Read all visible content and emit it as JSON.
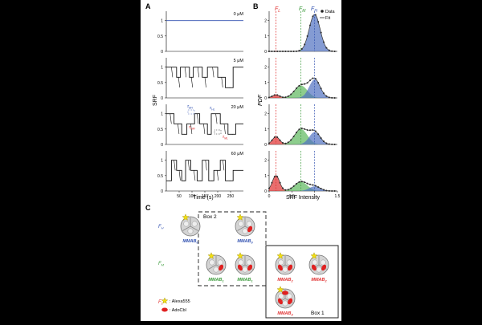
{
  "panel_labels": {
    "A": "A",
    "B": "B",
    "C": "C"
  },
  "panel_a": {
    "ylabel": "SRF",
    "xlabel": "Time (s)",
    "x_ticks": [
      "50",
      "100",
      "150",
      "200",
      "250"
    ],
    "y_ticks": [
      "0",
      "0.5",
      "1"
    ],
    "concentrations": [
      "0 μM",
      "5 μM",
      "20 μM",
      "60 μM"
    ],
    "annotations": {
      "t_bh": "τ",
      "t_bh_sub": "BH",
      "t_hl": "τ",
      "t_hl_sub": "HL",
      "t_hm": "τ",
      "t_hm_sub": "HM",
      "t_ml": "τ",
      "t_ml_sub": "ML"
    }
  },
  "panel_b": {
    "ylabel": "PDF",
    "xlabel": "SRF Intensity",
    "x_ticks": [
      "0",
      "0.5",
      "1",
      "1.5"
    ],
    "y_ticks": [
      "0",
      "1",
      "2"
    ],
    "state_labels": [
      {
        "main": "F",
        "sub": "L",
        "color": "#e03030"
      },
      {
        "main": "F",
        "sub": "M",
        "color": "#3a9a3a"
      },
      {
        "main": "F",
        "sub": "H",
        "color": "#3050b0"
      }
    ],
    "legend": {
      "data": "Data",
      "fit": "Fit"
    }
  },
  "panel_c": {
    "row_labels": [
      {
        "main": "F",
        "sub": "H",
        "color": "#3050b0"
      },
      {
        "main": "F",
        "sub": "M",
        "color": "#3a9a3a"
      },
      {
        "main": "F",
        "sub": "L",
        "color": "#e03030"
      }
    ],
    "box2_label": "Box 2",
    "box1_label": "Box 1",
    "legend_star": ": Alexa555",
    "legend_ellipse": ": AdoCbl",
    "proteins": [
      {
        "name": "MMAB",
        "sub": "0",
        "color": "#3050b0"
      },
      {
        "name": "MMAB",
        "sub": "0",
        "color": "#3050b0"
      },
      {
        "name": "MMAB",
        "sub": "1",
        "color": "#3a9a3a"
      },
      {
        "name": "MMAB",
        "sub": "1",
        "color": "#3a9a3a"
      },
      {
        "name": "MMAB",
        "sub": "2",
        "color": "#e03030"
      },
      {
        "name": "MMAB",
        "sub": "2",
        "color": "#e03030"
      },
      {
        "name": "MMAB",
        "sub": "3",
        "color": "#e03030"
      }
    ]
  },
  "chart_data": [
    {
      "type": "line",
      "title": "",
      "xlabel": "Time (s)",
      "ylabel": "SRF",
      "xlim": [
        0,
        300
      ],
      "ylim": [
        0,
        1.2
      ],
      "series_note_levels": [
        1.0,
        0.67,
        0.33
      ],
      "series": [
        {
          "name": "0 μM",
          "levels": [
            [
              0,
              300,
              1.0
            ]
          ]
        },
        {
          "name": "5 μM",
          "levels": [
            [
              0,
              40,
              1.0
            ],
            [
              40,
              55,
              0.67
            ],
            [
              55,
              90,
              1.0
            ],
            [
              90,
              105,
              0.67
            ],
            [
              105,
              140,
              1.0
            ],
            [
              140,
              160,
              0.67
            ],
            [
              160,
              200,
              1.0
            ],
            [
              200,
              230,
              0.67
            ],
            [
              230,
              260,
              0.33
            ],
            [
              260,
              300,
              1.0
            ]
          ]
        },
        {
          "name": "20 μM",
          "levels": [
            [
              0,
              30,
              1.0
            ],
            [
              30,
              60,
              0.67
            ],
            [
              60,
              80,
              0.33
            ],
            [
              80,
              110,
              0.67
            ],
            [
              110,
              130,
              1.0
            ],
            [
              130,
              160,
              0.67
            ],
            [
              160,
              175,
              0.33
            ],
            [
              175,
              210,
              1.0
            ],
            [
              210,
              240,
              0.67
            ],
            [
              240,
              270,
              0.33
            ],
            [
              270,
              300,
              0.67
            ]
          ]
        },
        {
          "name": "60 μM",
          "levels": [
            [
              0,
              20,
              0.33
            ],
            [
              20,
              40,
              1.0
            ],
            [
              40,
              60,
              0.67
            ],
            [
              60,
              75,
              0.33
            ],
            [
              75,
              95,
              1.0
            ],
            [
              95,
              120,
              0.67
            ],
            [
              120,
              140,
              0.33
            ],
            [
              140,
              165,
              1.0
            ],
            [
              165,
              185,
              0.33
            ],
            [
              185,
              210,
              0.67
            ],
            [
              210,
              230,
              1.0
            ],
            [
              230,
              260,
              0.33
            ],
            [
              260,
              300,
              0.67
            ]
          ]
        }
      ]
    },
    {
      "type": "area",
      "title": "",
      "xlabel": "SRF Intensity",
      "ylabel": "PDF",
      "xlim": [
        0,
        1.5
      ],
      "ylim": [
        0,
        2.5
      ],
      "centers": {
        "F_L": 0.15,
        "F_M": 0.7,
        "F_H": 1.0
      },
      "sigmas": {
        "F_L": 0.08,
        "F_M": 0.14,
        "F_H": 0.12
      },
      "panels": [
        {
          "name": "0 μM",
          "amplitudes": {
            "F_L": 0.0,
            "F_M": 0.0,
            "F_H": 2.4
          }
        },
        {
          "name": "5 μM",
          "amplitudes": {
            "F_L": 0.2,
            "F_M": 0.8,
            "F_H": 1.2
          }
        },
        {
          "name": "20 μM",
          "amplitudes": {
            "F_L": 0.5,
            "F_M": 1.0,
            "F_H": 0.8
          }
        },
        {
          "name": "60 μM",
          "amplitudes": {
            "F_L": 1.0,
            "F_M": 0.6,
            "F_H": 0.3
          }
        }
      ]
    }
  ]
}
